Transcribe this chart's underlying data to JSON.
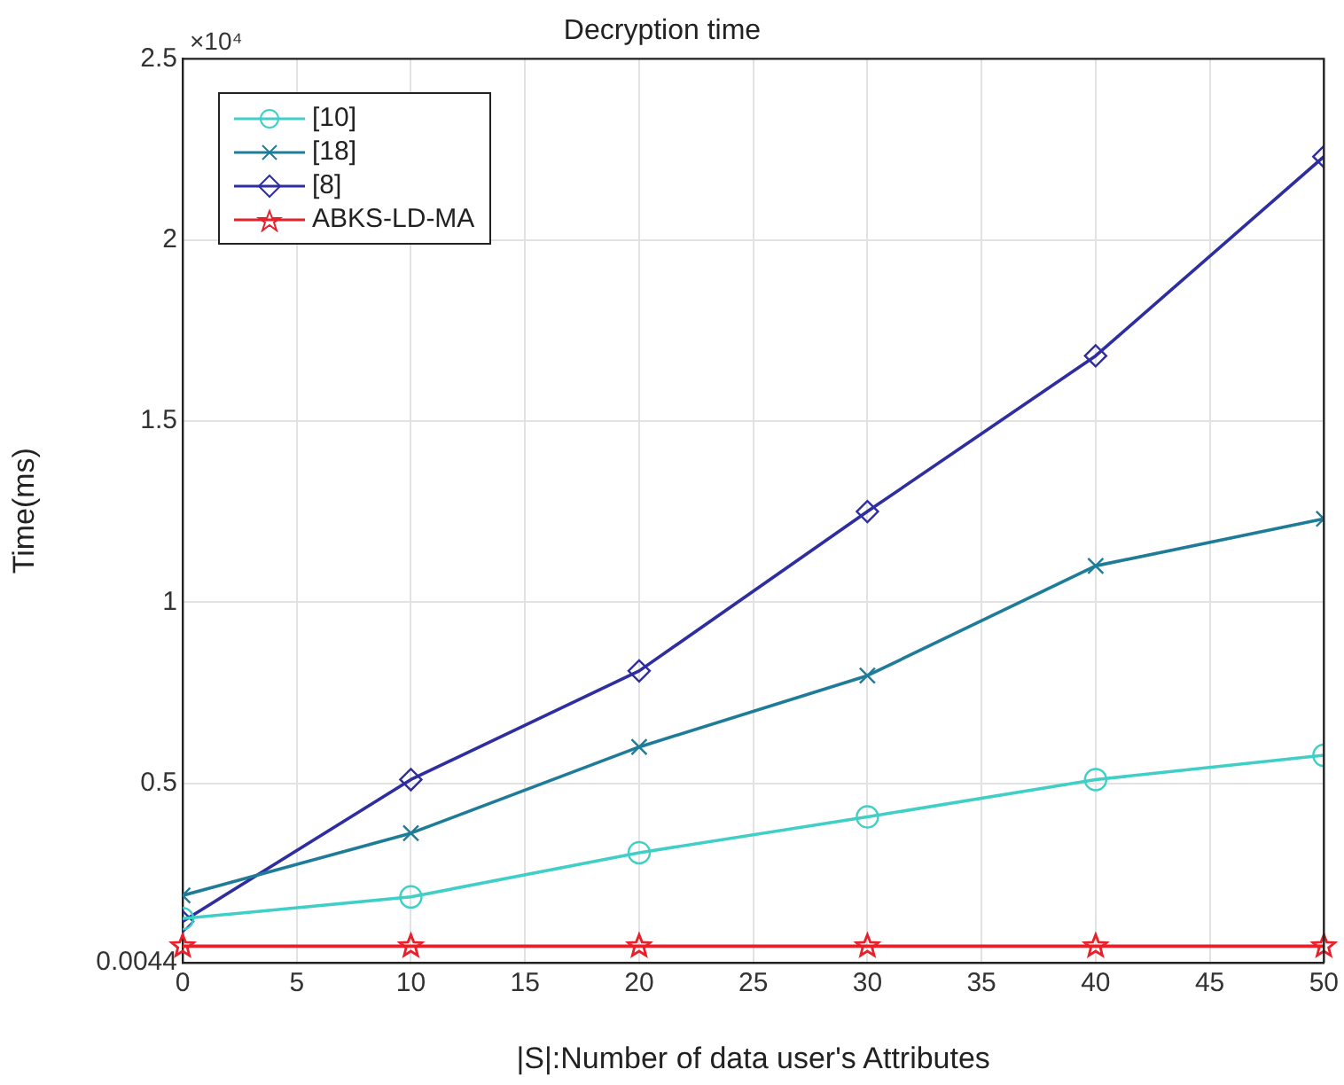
{
  "chart_data": {
    "type": "line",
    "title": "Decryption time",
    "xlabel": "|S|:Number of data user's Attributes",
    "ylabel": "Time(ms)",
    "annotations": [
      "×10⁴"
    ],
    "x": [
      0,
      10,
      20,
      30,
      40,
      50
    ],
    "series": [
      {
        "name": "[10]",
        "color": "#3fcfc6",
        "marker": "circle",
        "values": [
          0.126,
          0.186,
          0.308,
          0.407,
          0.51,
          0.577
        ]
      },
      {
        "name": "[18]",
        "color": "#1f7c98",
        "marker": "cross",
        "values": [
          0.19,
          0.362,
          0.6,
          0.797,
          1.1,
          1.23
        ]
      },
      {
        "name": "[8]",
        "color": "#2e2ea0",
        "marker": "diamond",
        "values": [
          0.118,
          0.51,
          0.81,
          1.25,
          1.68,
          2.23
        ]
      },
      {
        "name": "ABKS-LD-MA",
        "color": "#e8202a",
        "marker": "star",
        "values": [
          0.05,
          0.05,
          0.05,
          0.05,
          0.05,
          0.05
        ]
      }
    ],
    "xlim": [
      0,
      50
    ],
    "xticks": [
      0,
      5,
      10,
      15,
      20,
      25,
      30,
      35,
      40,
      45,
      50
    ],
    "ylim": [
      0.0044,
      2.5
    ],
    "yticks": [
      0.0044,
      0.5,
      1,
      1.5,
      2,
      2.5
    ],
    "grid": true,
    "legend": "top left",
    "line_style": "solid"
  }
}
